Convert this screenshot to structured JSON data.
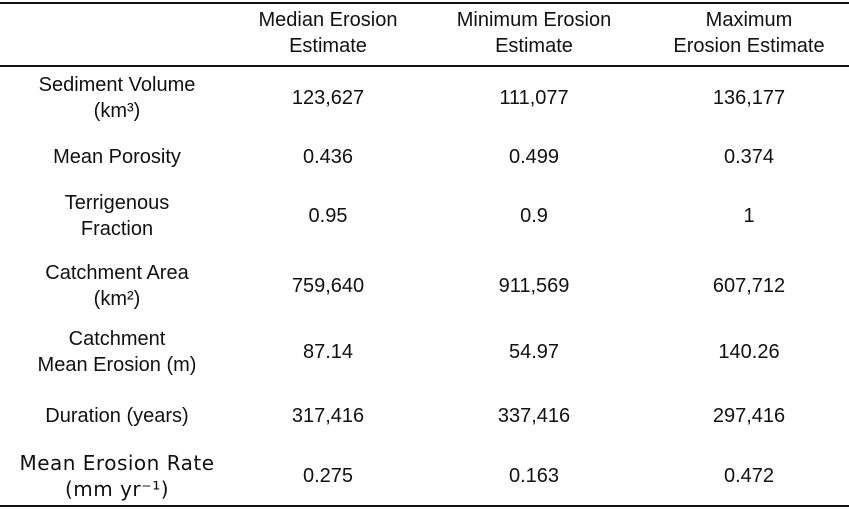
{
  "table": {
    "header": [
      [
        "Median Erosion",
        "Estimate"
      ],
      [
        "Minimum Erosion",
        "Estimate"
      ],
      [
        "Maximum",
        "Erosion Estimate"
      ]
    ],
    "rows": [
      [
        [
          "Sediment Volume",
          "(km³)"
        ],
        "123,627",
        "111,077",
        "136,177"
      ],
      [
        [
          "Mean Porosity"
        ],
        "0.436",
        "0.499",
        "0.374"
      ],
      [
        [
          "Terrigenous",
          "Fraction"
        ],
        "0.95",
        "0.9",
        "1"
      ],
      [
        [
          "Catchment Area",
          "(km²)"
        ],
        "759,640",
        "911,569",
        "607,712"
      ],
      [
        [
          "Catchment",
          "Mean Erosion (m)"
        ],
        "87.14",
        "54.97",
        "140.26"
      ],
      [
        [
          "Duration (years)"
        ],
        "317,416",
        "337,416",
        "297,416"
      ],
      [
        [
          "Mean Erosion Rate",
          "(mm yr⁻¹)"
        ],
        "0.275",
        "0.163",
        "0.472"
      ]
    ]
  }
}
